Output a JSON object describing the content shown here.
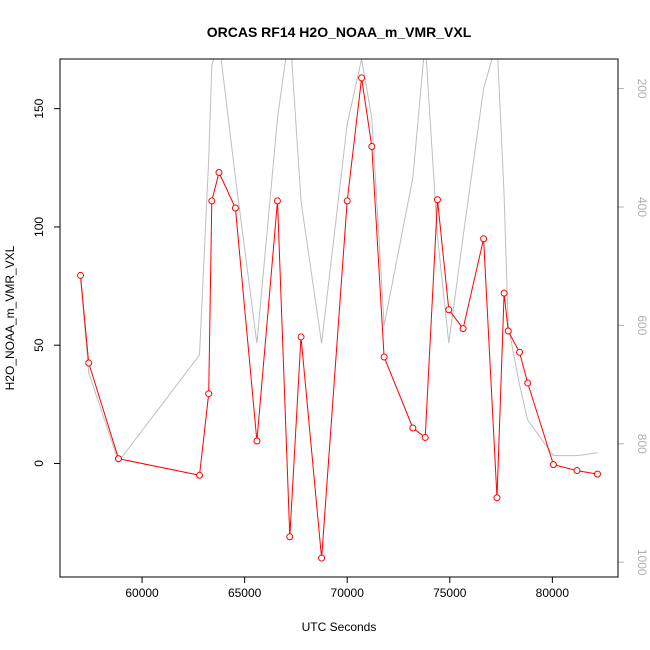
{
  "chart_data": {
    "type": "line",
    "title": "ORCAS RF14 H2O_NOAA_m_VMR_VXL",
    "xlabel": "UTC Seconds",
    "ylabel": "H2O_NOAA_m_VMR_VXL",
    "xlim": [
      56000,
      83200
    ],
    "ylim": [
      -48,
      171
    ],
    "x_ticks": [
      60000,
      65000,
      70000,
      75000,
      80000
    ],
    "y_ticks": [
      0,
      50,
      100,
      150
    ],
    "y2_ticks": [
      200,
      400,
      600,
      800,
      1000
    ],
    "y2lim": [
      1025,
      150
    ],
    "grid": false,
    "legend": "none",
    "series": [
      {
        "color": "#ff0000",
        "marker": "open-circle",
        "axis": "left",
        "x": [
          57000,
          57400,
          58850,
          62800,
          63250,
          63400,
          63750,
          64550,
          65600,
          66600,
          67200,
          67750,
          68750,
          70000,
          70700,
          71200,
          71800,
          73200,
          73800,
          74400,
          74950,
          75650,
          76650,
          77300,
          77650,
          77850,
          78400,
          78800,
          80050,
          81200,
          82200
        ],
        "y": [
          79.5,
          42.5,
          2,
          -5,
          29.5,
          111,
          123,
          108,
          9.5,
          111,
          -31,
          53.5,
          -40,
          111,
          163,
          134,
          45,
          15,
          11,
          111.5,
          65,
          57,
          95,
          -14.5,
          72,
          56,
          47,
          34,
          -0.5,
          -3,
          -4.5
        ]
      },
      {
        "color": "#bebebe",
        "marker": "none",
        "axis": "right",
        "x": [
          57000,
          57400,
          58850,
          62800,
          63250,
          63400,
          63750,
          64550,
          65600,
          66600,
          67200,
          67750,
          68750,
          70000,
          70700,
          71200,
          71800,
          73200,
          73800,
          74400,
          74950,
          75650,
          76650,
          77300,
          77650,
          77850,
          78400,
          78800,
          80050,
          81200,
          82200
        ],
        "y": [
          520,
          680,
          830,
          650,
          320,
          160,
          120,
          350,
          630,
          250,
          100,
          390,
          630,
          260,
          150,
          250,
          600,
          350,
          120,
          450,
          630,
          450,
          200,
          120,
          380,
          600,
          700,
          760,
          820,
          820,
          815
        ]
      }
    ]
  }
}
